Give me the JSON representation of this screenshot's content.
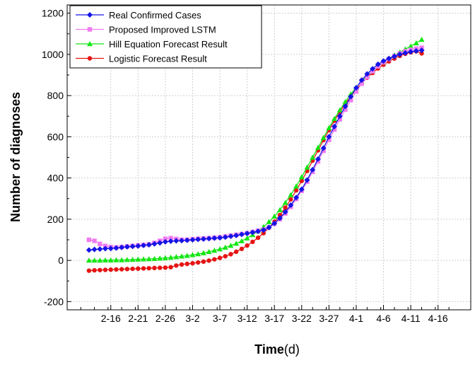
{
  "chart_data": {
    "type": "line",
    "xlabel_bold": "Time",
    "xlabel_unit": "(d)",
    "ylabel": "Number of diagnoses",
    "ylim": [
      -240,
      1240
    ],
    "yticks": [
      -200,
      0,
      200,
      400,
      600,
      800,
      1000,
      1200
    ],
    "xticks": [
      {
        "day": 4,
        "label": "2-16"
      },
      {
        "day": 9,
        "label": "2-21"
      },
      {
        "day": 14,
        "label": "2-26"
      },
      {
        "day": 19,
        "label": "3-2"
      },
      {
        "day": 24,
        "label": "3-7"
      },
      {
        "day": 29,
        "label": "3-12"
      },
      {
        "day": 34,
        "label": "3-17"
      },
      {
        "day": 39,
        "label": "3-22"
      },
      {
        "day": 44,
        "label": "3-27"
      },
      {
        "day": 49,
        "label": "4-1"
      },
      {
        "day": 54,
        "label": "4-6"
      },
      {
        "day": 59,
        "label": "4-11"
      },
      {
        "day": 64,
        "label": "4-16"
      }
    ],
    "legend_position": "top-left",
    "series": [
      {
        "name": "Real Confirmed Cases",
        "color": "#1414e6",
        "marker": "diamond",
        "values": [
          50,
          53,
          55,
          57,
          58,
          60,
          63,
          66,
          68,
          70,
          73,
          76,
          80,
          85,
          90,
          93,
          95,
          96,
          98,
          100,
          102,
          104,
          106,
          108,
          110,
          113,
          117,
          121,
          126,
          131,
          136,
          141,
          147,
          160,
          180,
          205,
          235,
          268,
          305,
          345,
          390,
          440,
          492,
          545,
          600,
          650,
          700,
          748,
          795,
          838,
          875,
          905,
          930,
          952,
          968,
          980,
          990,
          1000,
          1007,
          1013,
          1017,
          1020
        ]
      },
      {
        "name": "Proposed Improved LSTM",
        "color": "#f07cf0",
        "marker": "square",
        "values": [
          100,
          95,
          80,
          70,
          65,
          63,
          65,
          68,
          70,
          73,
          75,
          78,
          85,
          95,
          105,
          108,
          104,
          100,
          100,
          103,
          105,
          107,
          108,
          110,
          112,
          116,
          120,
          124,
          128,
          132,
          138,
          144,
          150,
          160,
          178,
          200,
          228,
          260,
          298,
          338,
          382,
          430,
          480,
          532,
          585,
          635,
          685,
          732,
          778,
          820,
          858,
          890,
          918,
          942,
          962,
          978,
          992,
          1005,
          1015,
          1022,
          1028,
          1032
        ]
      },
      {
        "name": "Hill Equation Forecast Result",
        "color": "#14e614",
        "marker": "triangle",
        "values": [
          0,
          0,
          0,
          1,
          1,
          2,
          2,
          3,
          4,
          5,
          6,
          7,
          8,
          10,
          12,
          14,
          17,
          20,
          23,
          27,
          31,
          36,
          42,
          48,
          55,
          63,
          72,
          82,
          94,
          108,
          124,
          142,
          163,
          187,
          214,
          245,
          280,
          318,
          360,
          405,
          452,
          500,
          548,
          596,
          643,
          688,
          730,
          770,
          807,
          840,
          870,
          896,
          920,
          942,
          962,
          980,
          996,
          1011,
          1025,
          1040,
          1055,
          1072
        ]
      },
      {
        "name": "Logistic Forecast Result",
        "color": "#e61414",
        "marker": "circle",
        "values": [
          -50,
          -48,
          -47,
          -46,
          -45,
          -44,
          -43,
          -42,
          -41,
          -40,
          -39,
          -38,
          -37,
          -36,
          -35,
          -33,
          -25,
          -20,
          -17,
          -14,
          -10,
          -6,
          -1,
          5,
          12,
          20,
          30,
          42,
          56,
          72,
          90,
          110,
          132,
          158,
          188,
          220,
          256,
          296,
          340,
          386,
          434,
          484,
          534,
          584,
          632,
          678,
          720,
          760,
          796,
          830,
          860,
          887,
          910,
          932,
          950,
          966,
          980,
          993,
          1003,
          1010,
          1015,
          1005
        ]
      }
    ]
  }
}
